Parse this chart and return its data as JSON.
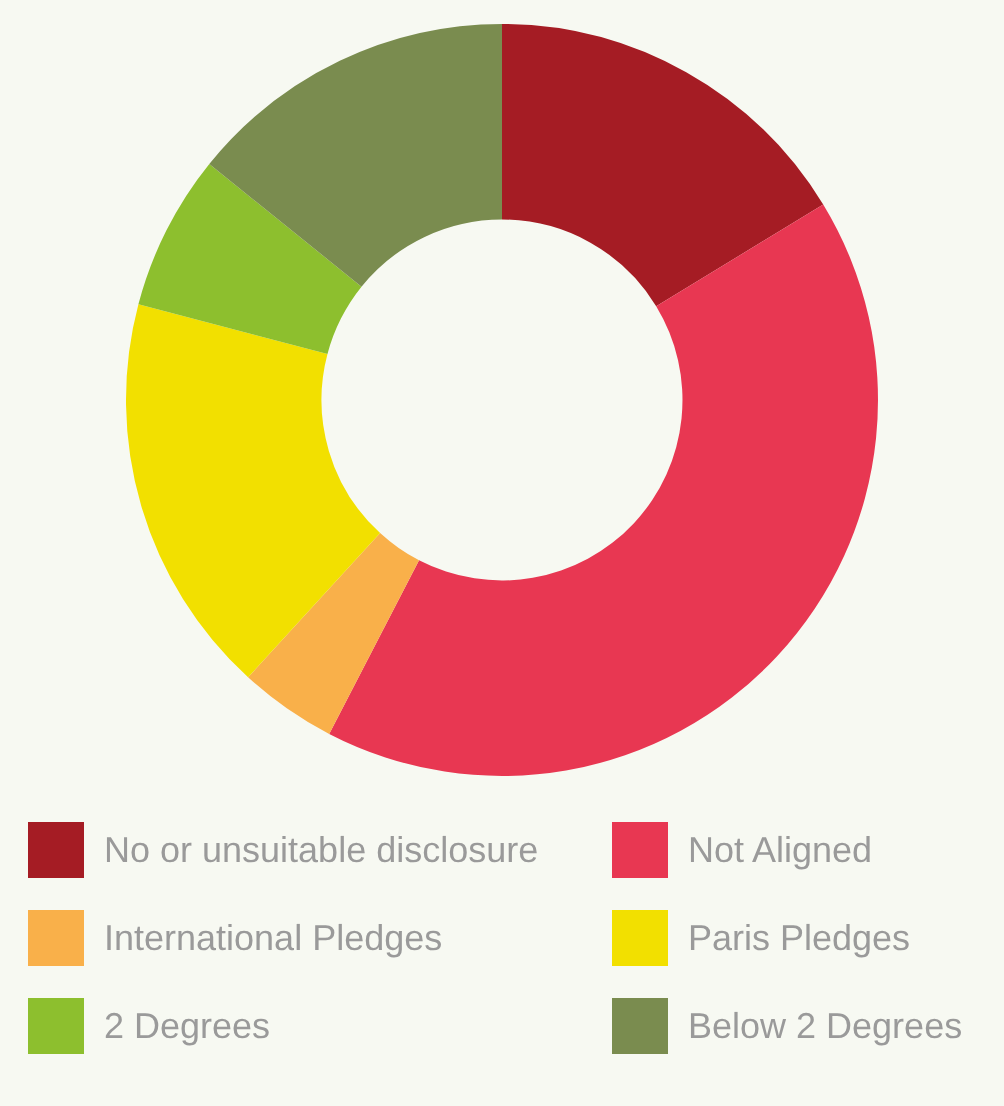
{
  "chart_data": {
    "type": "donut",
    "categories": [
      "No or unsuitable disclosure",
      "Not Aligned",
      "International Pledges",
      "Paris Pledges",
      "2 Degrees",
      "Below 2 Degrees"
    ],
    "values": [
      16.3,
      41.3,
      4.2,
      17.3,
      6.7,
      14.2
    ],
    "colors": [
      "#a51c24",
      "#e83752",
      "#f9b04a",
      "#f2e000",
      "#8dbf2e",
      "#7a8c4f"
    ],
    "legend": "bottom"
  }
}
